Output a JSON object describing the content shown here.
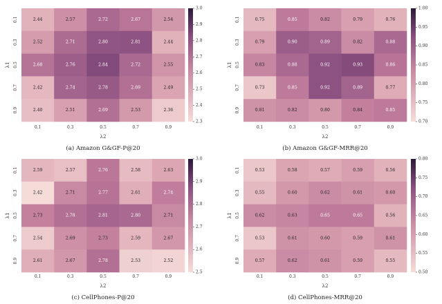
{
  "colormap": {
    "light": "#f5dcd9",
    "mid": "#b0698f",
    "dark": "#2c1838"
  },
  "chart_data": [
    {
      "type": "heatmap",
      "caption": "(a) Amazon G&GF-P@20",
      "x_ticks": [
        "0.1",
        "0.3",
        "0.5",
        "0.7",
        "0.9"
      ],
      "y_ticks": [
        "0.1",
        "0.3",
        "0.5",
        "0.7",
        "0.9"
      ],
      "xlabel": "λ2",
      "ylabel": "λ1",
      "values": [
        [
          2.44,
          2.57,
          2.72,
          2.67,
          2.54
        ],
        [
          2.52,
          2.71,
          2.8,
          2.81,
          2.44
        ],
        [
          2.68,
          2.76,
          2.84,
          2.72,
          2.55
        ],
        [
          2.42,
          2.74,
          2.78,
          2.69,
          2.49
        ],
        [
          2.4,
          2.51,
          2.69,
          2.53,
          2.36
        ]
      ],
      "labels": [
        [
          "2.44",
          "2.57",
          "2.72",
          "2.67",
          "2.54"
        ],
        [
          "2.52",
          "2.71",
          "2.80",
          "2.81",
          "2.44"
        ],
        [
          "2.68",
          "2.76",
          "2.84",
          "2.72",
          "2.55"
        ],
        [
          "2.42",
          "2.74",
          "2.78",
          "2.69",
          "2.49"
        ],
        [
          "2.40",
          "2.51",
          "2.69",
          "2.53",
          "2.36"
        ]
      ],
      "cbar_range": [
        2.3,
        3.0
      ],
      "cbar_ticks": [
        "3.0",
        "2.9",
        "2.8",
        "2.7",
        "2.6",
        "2.5",
        "2.4",
        "2.3"
      ]
    },
    {
      "type": "heatmap",
      "caption": "(b) Amazon G&GF-MRR@20",
      "x_ticks": [
        "0.1",
        "0.3",
        "0.5",
        "0.7",
        "0.9"
      ],
      "y_ticks": [
        "0.1",
        "0.3",
        "0.5",
        "0.7",
        "0.9"
      ],
      "xlabel": "λ2",
      "ylabel": "λ1",
      "values": [
        [
          0.75,
          0.85,
          0.82,
          0.79,
          0.76
        ],
        [
          0.79,
          0.9,
          0.89,
          0.82,
          0.88
        ],
        [
          0.83,
          0.88,
          0.92,
          0.93,
          0.86
        ],
        [
          0.73,
          0.85,
          0.92,
          0.89,
          0.77
        ],
        [
          0.81,
          0.82,
          0.8,
          0.84,
          0.85
        ]
      ],
      "labels": [
        [
          "0.75",
          "0.85",
          "0.82",
          "0.79",
          "0.76"
        ],
        [
          "0.79",
          "0.90",
          "0.89",
          "0.82",
          "0.88"
        ],
        [
          "0.83",
          "0.88",
          "0.92",
          "0.93",
          "0.86"
        ],
        [
          "0.73",
          "0.85",
          "0.92",
          "0.89",
          "0.77"
        ],
        [
          "0.81",
          "0.82",
          "0.80",
          "0.84",
          "0.85"
        ]
      ],
      "cbar_range": [
        0.7,
        1.0
      ],
      "cbar_ticks": [
        "1.00",
        "0.95",
        "0.90",
        "0.85",
        "0.80",
        "0.75",
        "0.70"
      ]
    },
    {
      "type": "heatmap",
      "caption": "(c) CellPhones-P@20",
      "x_ticks": [
        "0.1",
        "0.3",
        "0.5",
        "0.7",
        "0.9"
      ],
      "y_ticks": [
        "0.1",
        "0.3",
        "0.5",
        "0.7",
        "0.9"
      ],
      "xlabel": "λ2",
      "ylabel": "λ1",
      "values": [
        [
          2.59,
          2.57,
          2.76,
          2.58,
          2.63
        ],
        [
          2.42,
          2.71,
          2.77,
          2.61,
          2.74
        ],
        [
          2.73,
          2.78,
          2.81,
          2.8,
          2.71
        ],
        [
          2.54,
          2.69,
          2.73,
          2.59,
          2.67
        ],
        [
          2.61,
          2.67,
          2.78,
          2.53,
          2.52
        ]
      ],
      "labels": [
        [
          "2.59",
          "2.57",
          "2.76",
          "2.58",
          "2.63"
        ],
        [
          "2.42",
          "2.71",
          "2.77",
          "2.61",
          "2.74"
        ],
        [
          "2.73",
          "2.78",
          "2.81",
          "2.80",
          "2.71"
        ],
        [
          "2.54",
          "2.69",
          "2.73",
          "2.59",
          "2.67"
        ],
        [
          "2.61",
          "2.67",
          "2.78",
          "2.53",
          "2.52"
        ]
      ],
      "cbar_range": [
        2.5,
        3.0
      ],
      "cbar_ticks": [
        "3.0",
        "2.9",
        "2.8",
        "2.7",
        "2.6",
        "2.5"
      ]
    },
    {
      "type": "heatmap",
      "caption": "(d) CellPhones-MRR@20",
      "x_ticks": [
        "0.1",
        "0.3",
        "0.5",
        "0.7",
        "0.9"
      ],
      "y_ticks": [
        "0.1",
        "0.3",
        "0.5",
        "0.7",
        "0.9"
      ],
      "xlabel": "λ2",
      "ylabel": "λ1",
      "values": [
        [
          0.53,
          0.58,
          0.57,
          0.59,
          0.56
        ],
        [
          0.55,
          0.6,
          0.62,
          0.61,
          0.6
        ],
        [
          0.62,
          0.63,
          0.65,
          0.65,
          0.56
        ],
        [
          0.53,
          0.61,
          0.6,
          0.59,
          0.61
        ],
        [
          0.57,
          0.62,
          0.61,
          0.59,
          0.55
        ]
      ],
      "labels": [
        [
          "0.53",
          "0.58",
          "0.57",
          "0.59",
          "0.56"
        ],
        [
          "0.55",
          "0.60",
          "0.62",
          "0.61",
          "0.60"
        ],
        [
          "0.62",
          "0.63",
          "0.65",
          "0.65",
          "0.56"
        ],
        [
          "0.53",
          "0.61",
          "0.60",
          "0.59",
          "0.61"
        ],
        [
          "0.57",
          "0.62",
          "0.61",
          "0.59",
          "0.55"
        ]
      ],
      "cbar_range": [
        0.5,
        0.8
      ],
      "cbar_ticks": [
        "0.80",
        "0.75",
        "0.70",
        "0.65",
        "0.60",
        "0.55",
        "0.50"
      ]
    }
  ]
}
